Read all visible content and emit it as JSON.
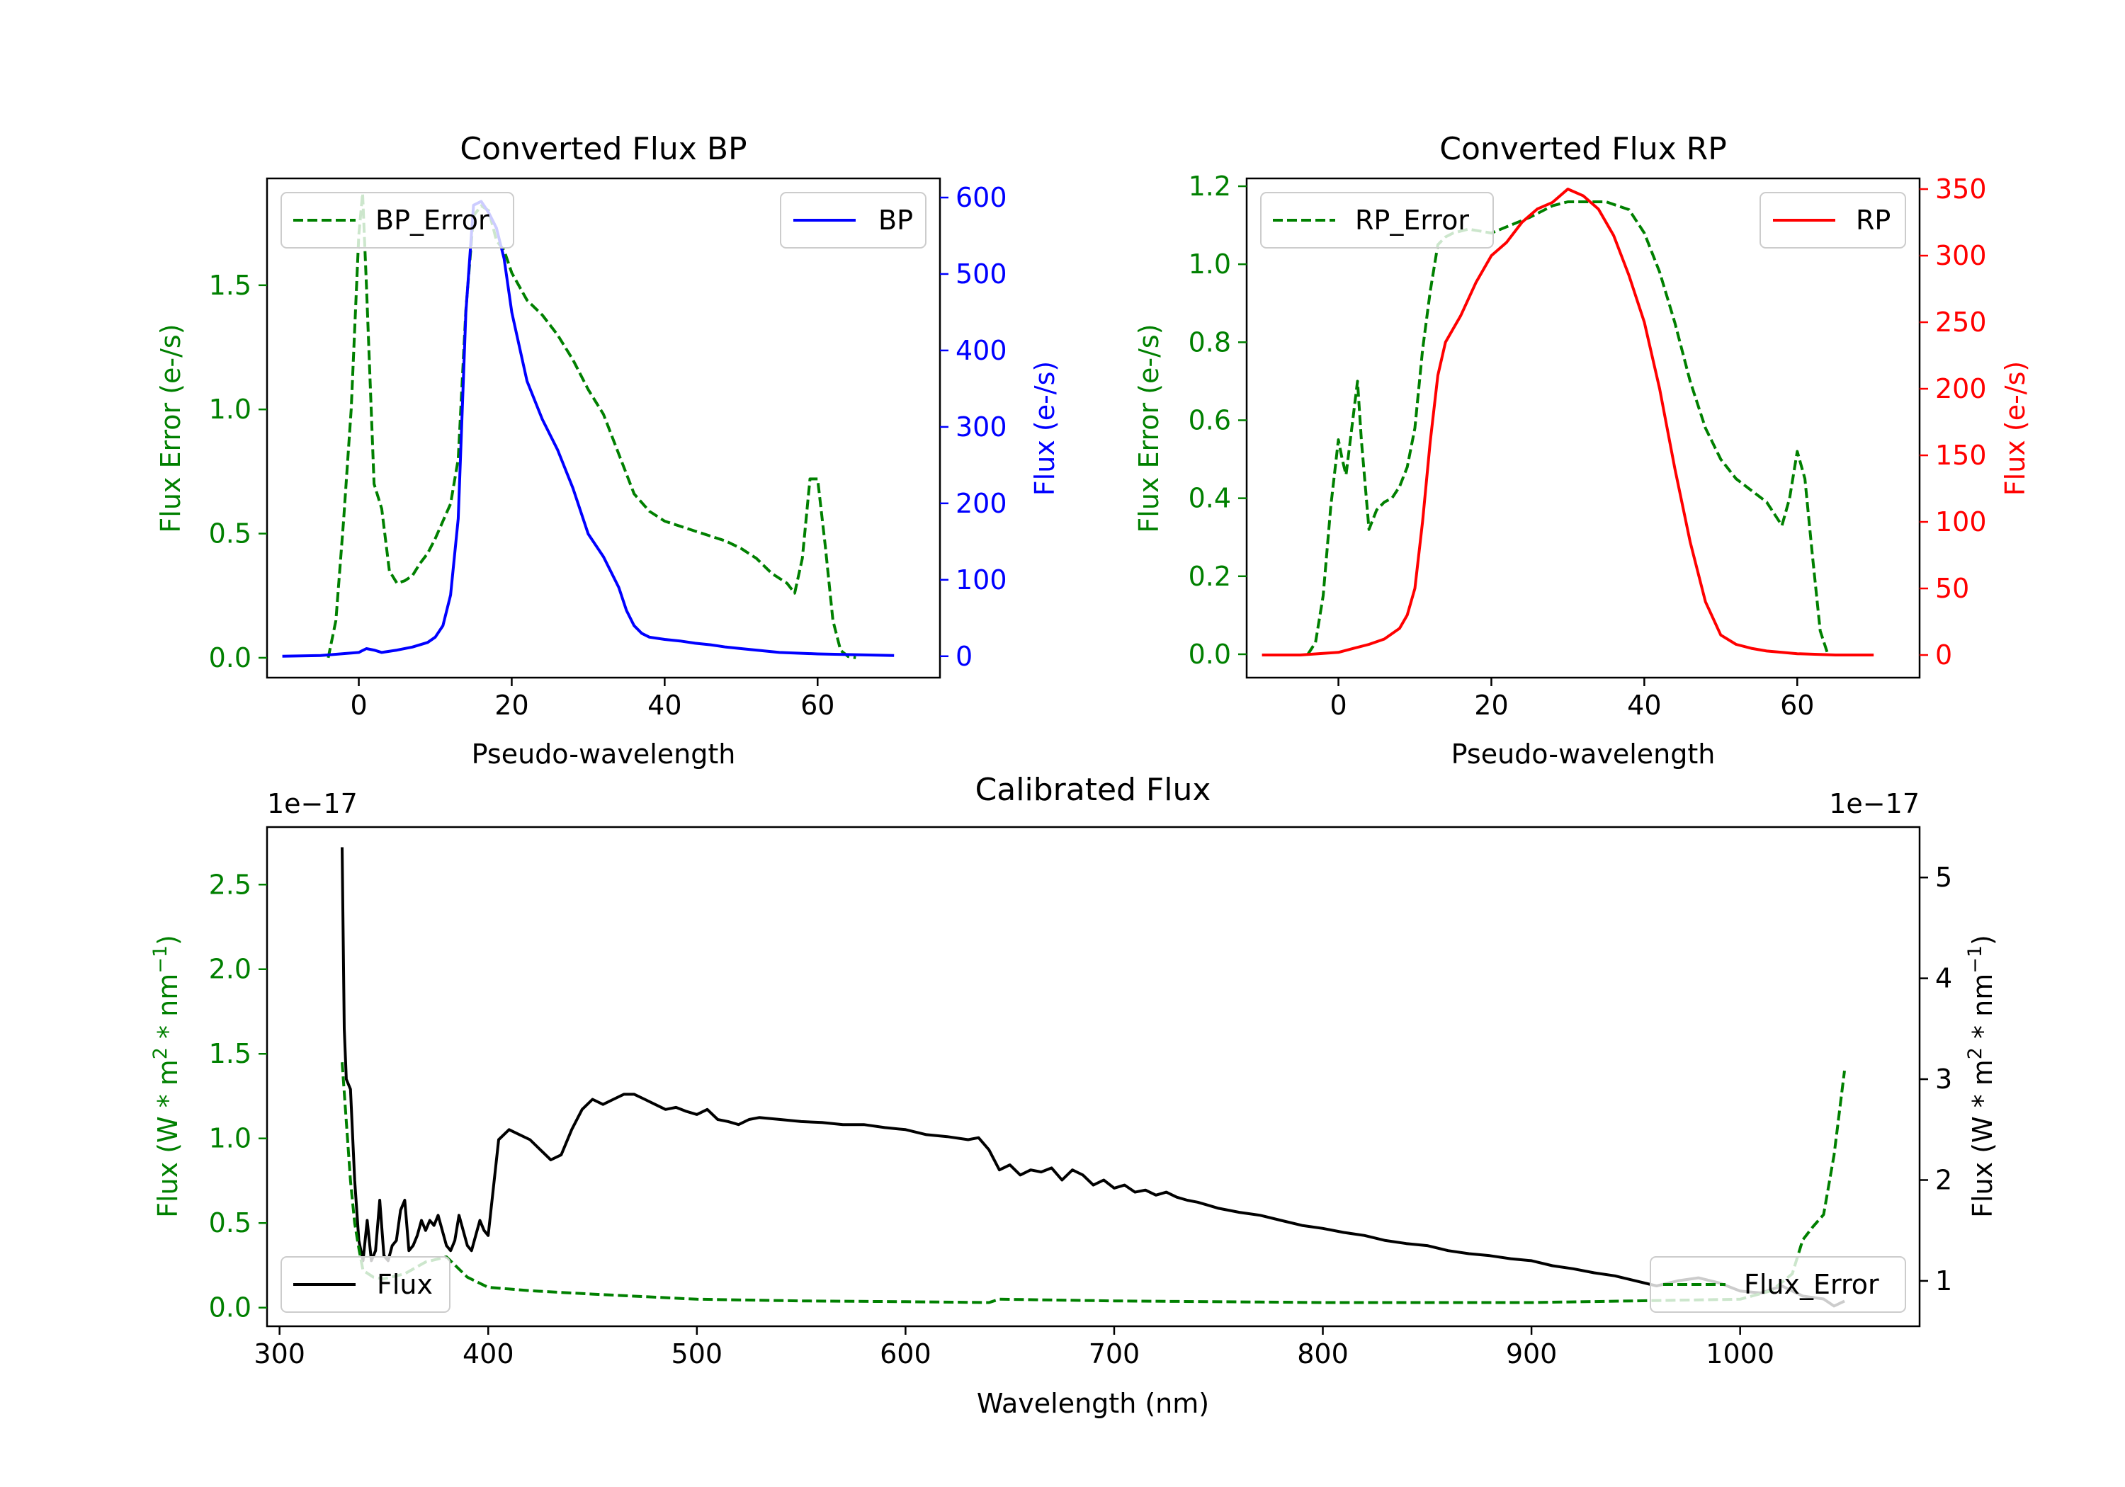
{
  "chart_data": [
    {
      "type": "line",
      "title": "Converted Flux BP",
      "xlabel": "Pseudo-wavelength",
      "xlim": [
        -12,
        76
      ],
      "xticks": [
        0,
        20,
        40,
        60
      ],
      "left_axis": {
        "label": "Flux Error (e-/s)",
        "color": "#008000",
        "ylim": [
          -0.08,
          1.93
        ],
        "ticks": [
          0.0,
          0.5,
          1.0,
          1.5
        ],
        "tick_labels": [
          "0.0",
          "0.5",
          "1.0",
          "1.5"
        ]
      },
      "right_axis": {
        "label": "Flux (e-/s)",
        "color": "#0000ff",
        "ylim": [
          -28,
          625
        ],
        "ticks": [
          0,
          100,
          200,
          300,
          400,
          500,
          600
        ],
        "tick_labels": [
          "0",
          "100",
          "200",
          "300",
          "400",
          "500",
          "600"
        ]
      },
      "series": [
        {
          "name": "BP_Error",
          "axis": "left",
          "color": "#008000",
          "dash": true,
          "x": [
            -4,
            -3,
            -2,
            -1,
            0,
            0.5,
            1,
            2,
            3,
            4,
            5,
            6,
            7,
            8,
            9,
            10,
            11,
            12,
            13,
            14,
            15,
            16,
            17,
            18,
            19,
            20,
            22,
            24,
            26,
            28,
            30,
            32,
            34,
            36,
            38,
            40,
            44,
            48,
            50,
            52,
            54,
            56,
            57,
            58,
            59,
            60,
            61,
            62,
            63,
            64,
            65
          ],
          "y": [
            0.0,
            0.15,
            0.55,
            1.0,
            1.7,
            1.87,
            1.5,
            0.7,
            0.6,
            0.35,
            0.3,
            0.31,
            0.33,
            0.38,
            0.42,
            0.48,
            0.55,
            0.62,
            0.8,
            1.4,
            1.78,
            1.82,
            1.8,
            1.68,
            1.64,
            1.55,
            1.44,
            1.38,
            1.3,
            1.2,
            1.08,
            0.98,
            0.82,
            0.66,
            0.59,
            0.55,
            0.51,
            0.47,
            0.44,
            0.4,
            0.34,
            0.3,
            0.26,
            0.4,
            0.72,
            0.72,
            0.45,
            0.15,
            0.03,
            0.005,
            0.0
          ]
        },
        {
          "name": "BP",
          "axis": "right",
          "color": "#0000ff",
          "dash": false,
          "x": [
            -10,
            -5,
            0,
            1,
            2,
            3,
            5,
            7,
            9,
            10,
            11,
            12,
            13,
            14,
            15,
            16,
            17,
            18,
            19,
            20,
            22,
            24,
            26,
            28,
            30,
            32,
            34,
            35,
            36,
            37,
            38,
            40,
            42,
            44,
            46,
            48,
            50,
            55,
            60,
            65,
            70
          ],
          "y": [
            0,
            1,
            5,
            10,
            8,
            5,
            8,
            12,
            18,
            25,
            40,
            80,
            180,
            450,
            590,
            595,
            580,
            560,
            520,
            450,
            360,
            310,
            270,
            220,
            160,
            130,
            90,
            60,
            40,
            30,
            25,
            22,
            20,
            17,
            15,
            12,
            10,
            5,
            3,
            2,
            1
          ]
        }
      ],
      "legend": [
        {
          "label": "BP_Error",
          "position": "upper-left"
        },
        {
          "label": "BP",
          "position": "upper-right"
        }
      ]
    },
    {
      "type": "line",
      "title": "Converted Flux RP",
      "xlabel": "Pseudo-wavelength",
      "xlim": [
        -12,
        76
      ],
      "xticks": [
        0,
        20,
        40,
        60
      ],
      "left_axis": {
        "label": "Flux Error (e-/s)",
        "color": "#008000",
        "ylim": [
          -0.06,
          1.22
        ],
        "ticks": [
          0.0,
          0.2,
          0.4,
          0.6,
          0.8,
          1.0,
          1.2
        ],
        "tick_labels": [
          "0.0",
          "0.2",
          "0.4",
          "0.6",
          "0.8",
          "1.0",
          "1.2"
        ]
      },
      "right_axis": {
        "label": "Flux (e-/s)",
        "color": "#ff0000",
        "ylim": [
          -17,
          358
        ],
        "ticks": [
          0,
          50,
          100,
          150,
          200,
          250,
          300,
          350
        ],
        "tick_labels": [
          "0",
          "50",
          "100",
          "150",
          "200",
          "250",
          "300",
          "350"
        ]
      },
      "series": [
        {
          "name": "RP_Error",
          "axis": "left",
          "color": "#008000",
          "dash": true,
          "x": [
            -4,
            -3,
            -2,
            -1,
            0,
            0.5,
            1,
            2,
            2.5,
            3,
            4,
            5,
            6,
            7,
            8,
            9,
            10,
            11,
            12,
            13,
            14,
            15,
            17,
            20,
            25,
            28,
            30,
            35,
            38,
            40,
            42,
            44,
            46,
            48,
            50,
            52,
            54,
            56,
            57,
            58,
            59,
            60,
            61,
            62,
            63,
            64
          ],
          "y": [
            0.0,
            0.03,
            0.15,
            0.38,
            0.55,
            0.5,
            0.46,
            0.62,
            0.7,
            0.55,
            0.32,
            0.37,
            0.39,
            0.4,
            0.43,
            0.48,
            0.58,
            0.78,
            0.93,
            1.05,
            1.07,
            1.08,
            1.09,
            1.08,
            1.12,
            1.15,
            1.16,
            1.16,
            1.14,
            1.08,
            0.98,
            0.85,
            0.7,
            0.58,
            0.5,
            0.45,
            0.42,
            0.39,
            0.36,
            0.33,
            0.4,
            0.52,
            0.45,
            0.25,
            0.06,
            0.0
          ]
        },
        {
          "name": "RP",
          "axis": "right",
          "color": "#ff0000",
          "dash": false,
          "x": [
            -10,
            -5,
            0,
            2,
            4,
            6,
            8,
            9,
            10,
            11,
            12,
            13,
            14,
            15,
            16,
            18,
            20,
            22,
            24,
            26,
            28,
            30,
            32,
            34,
            36,
            38,
            40,
            42,
            44,
            46,
            48,
            50,
            52,
            54,
            56,
            58,
            60,
            65,
            70
          ],
          "y": [
            0,
            0,
            2,
            5,
            8,
            12,
            20,
            30,
            50,
            100,
            160,
            210,
            235,
            245,
            255,
            280,
            300,
            310,
            325,
            335,
            340,
            350,
            345,
            335,
            315,
            285,
            250,
            200,
            140,
            85,
            40,
            15,
            8,
            5,
            3,
            2,
            1,
            0,
            0
          ]
        }
      ],
      "legend": [
        {
          "label": "RP_Error",
          "position": "upper-left"
        },
        {
          "label": "RP",
          "position": "upper-right"
        }
      ]
    },
    {
      "type": "line",
      "title": "Calibrated Flux",
      "xlabel": "Wavelength (nm)",
      "xlim": [
        294,
        1086
      ],
      "xticks": [
        300,
        400,
        500,
        600,
        700,
        800,
        900,
        1000
      ],
      "left_axis": {
        "label_main": "Flux (W * m",
        "label_sup1": "2",
        "label_mid": " * nm",
        "label_sup2": "−1",
        "label_end": ")",
        "offset_text": "1e−17",
        "color": "#008000",
        "ylim": [
          -0.11,
          2.84
        ],
        "ticks": [
          0.0,
          0.5,
          1.0,
          1.5,
          2.0,
          2.5
        ],
        "tick_labels": [
          "0.0",
          "0.5",
          "1.0",
          "1.5",
          "2.0",
          "2.5"
        ]
      },
      "right_axis": {
        "label_main": "Flux (W * m",
        "label_sup1": "2",
        "label_mid": " * nm",
        "label_sup2": "−1",
        "label_end": ")",
        "offset_text": "1e−17",
        "color": "#000000",
        "ylim": [
          0.55,
          5.5
        ],
        "ticks": [
          1,
          2,
          3,
          4,
          5
        ],
        "tick_labels": [
          "1",
          "2",
          "3",
          "4",
          "5"
        ]
      },
      "series": [
        {
          "name": "Flux",
          "axis": "right",
          "color": "#000000",
          "dash": false,
          "x": [
            330,
            331,
            332,
            334,
            336,
            338,
            340,
            342,
            344,
            346,
            348,
            350,
            352,
            354,
            356,
            358,
            360,
            362,
            364,
            366,
            368,
            370,
            372,
            374,
            376,
            378,
            380,
            382,
            384,
            386,
            388,
            390,
            392,
            394,
            396,
            398,
            400,
            405,
            410,
            415,
            420,
            425,
            430,
            435,
            440,
            445,
            450,
            455,
            460,
            465,
            470,
            475,
            480,
            485,
            490,
            495,
            500,
            505,
            510,
            515,
            520,
            525,
            530,
            540,
            550,
            560,
            570,
            580,
            590,
            600,
            610,
            620,
            630,
            635,
            640,
            645,
            650,
            655,
            660,
            665,
            670,
            675,
            680,
            685,
            690,
            695,
            700,
            705,
            710,
            715,
            720,
            725,
            730,
            735,
            740,
            745,
            750,
            760,
            770,
            780,
            790,
            800,
            810,
            820,
            830,
            840,
            850,
            860,
            870,
            880,
            890,
            900,
            910,
            920,
            930,
            940,
            950,
            960,
            970,
            980,
            990,
            1000,
            1010,
            1020,
            1030,
            1040,
            1045,
            1050
          ],
          "y": [
            5.3,
            3.5,
            3.0,
            2.9,
            2.0,
            1.4,
            1.2,
            1.6,
            1.2,
            1.3,
            1.8,
            1.25,
            1.2,
            1.35,
            1.4,
            1.7,
            1.8,
            1.3,
            1.35,
            1.45,
            1.6,
            1.5,
            1.6,
            1.55,
            1.65,
            1.5,
            1.35,
            1.3,
            1.4,
            1.65,
            1.5,
            1.35,
            1.3,
            1.45,
            1.6,
            1.5,
            1.45,
            2.4,
            2.5,
            2.45,
            2.4,
            2.3,
            2.2,
            2.25,
            2.5,
            2.7,
            2.8,
            2.75,
            2.8,
            2.85,
            2.85,
            2.8,
            2.75,
            2.7,
            2.72,
            2.68,
            2.65,
            2.7,
            2.6,
            2.58,
            2.55,
            2.6,
            2.62,
            2.6,
            2.58,
            2.57,
            2.55,
            2.55,
            2.52,
            2.5,
            2.45,
            2.43,
            2.4,
            2.42,
            2.3,
            2.1,
            2.15,
            2.05,
            2.1,
            2.08,
            2.12,
            2.0,
            2.1,
            2.05,
            1.95,
            2.0,
            1.92,
            1.95,
            1.88,
            1.9,
            1.85,
            1.88,
            1.83,
            1.8,
            1.78,
            1.75,
            1.72,
            1.68,
            1.65,
            1.6,
            1.55,
            1.52,
            1.48,
            1.45,
            1.4,
            1.37,
            1.35,
            1.3,
            1.27,
            1.25,
            1.22,
            1.2,
            1.15,
            1.12,
            1.08,
            1.05,
            1.0,
            0.95,
            1.0,
            1.03,
            0.98,
            0.9,
            0.88,
            0.95,
            0.85,
            0.82,
            0.75,
            0.8
          ]
        },
        {
          "name": "Flux_Error",
          "axis": "left",
          "color": "#008000",
          "dash": true,
          "x": [
            330,
            332,
            334,
            336,
            338,
            340,
            345,
            350,
            360,
            370,
            380,
            390,
            400,
            420,
            450,
            500,
            550,
            600,
            640,
            645,
            700,
            800,
            900,
            1000,
            1015,
            1025,
            1030,
            1035,
            1040,
            1045,
            1050
          ],
          "y": [
            1.45,
            1.1,
            0.75,
            0.5,
            0.35,
            0.22,
            0.18,
            0.17,
            0.2,
            0.27,
            0.3,
            0.18,
            0.12,
            0.1,
            0.08,
            0.05,
            0.04,
            0.035,
            0.03,
            0.05,
            0.04,
            0.03,
            0.03,
            0.05,
            0.1,
            0.2,
            0.4,
            0.48,
            0.55,
            0.9,
            1.4
          ]
        }
      ],
      "legend": [
        {
          "label": "Flux",
          "position": "lower-left"
        },
        {
          "label": "Flux_Error",
          "position": "lower-right"
        }
      ]
    }
  ]
}
